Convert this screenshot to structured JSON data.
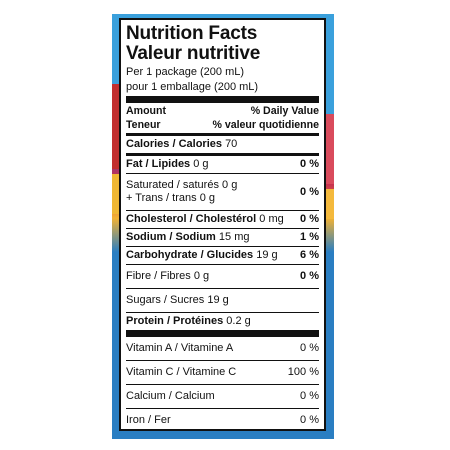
{
  "label": {
    "title_en": "Nutrition Facts",
    "title_fr": "Valeur nutritive",
    "serving_en": "Per 1 package (200 mL)",
    "serving_fr": "pour 1 emballage (200 mL)",
    "header": {
      "amount_en": "Amount",
      "dv_en": "% Daily Value",
      "amount_fr": "Teneur",
      "dv_fr": "% valeur quotidienne"
    },
    "calories": {
      "label": "Calories / Calories",
      "value": "70"
    },
    "fat": {
      "label": "Fat / Lipides",
      "value": "0 g",
      "pct": "0 %"
    },
    "saturated": {
      "label": "Saturated / saturés",
      "value": "0 g"
    },
    "trans": {
      "label": "+ Trans / trans",
      "value": "0 g",
      "pct": "0 %"
    },
    "cholesterol": {
      "label": "Cholesterol / Cholestérol",
      "value": "0 mg",
      "pct": "0 %"
    },
    "sodium": {
      "label": "Sodium / Sodium",
      "value": "15 mg",
      "pct": "1 %"
    },
    "carbohydrate": {
      "label": "Carbohydrate / Glucides",
      "value": "19 g",
      "pct": "6 %"
    },
    "fibre": {
      "label": "Fibre / Fibres",
      "value": "0 g",
      "pct": "0 %"
    },
    "sugars": {
      "label": "Sugars / Sucres",
      "value": "19 g"
    },
    "protein": {
      "label": "Protein / Protéines",
      "value": "0.2 g"
    },
    "vitamin_a": {
      "label": "Vitamin A / Vitamine A",
      "pct": "0 %"
    },
    "vitamin_c": {
      "label": "Vitamin C / Vitamine C",
      "pct": "100 %"
    },
    "calcium": {
      "label": "Calcium / Calcium",
      "pct": "0 %"
    },
    "iron": {
      "label": "Iron / Fer",
      "pct": "0 %"
    }
  },
  "colors": {
    "package_blue": "#3aa0dc",
    "package_red": "#c7304f",
    "package_yellow": "#f2b233",
    "ink": "#111111"
  }
}
